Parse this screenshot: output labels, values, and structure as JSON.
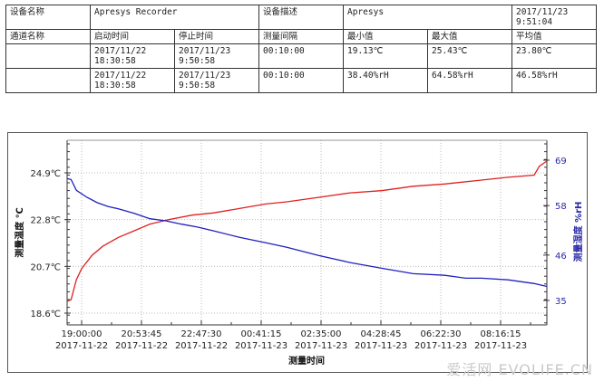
{
  "table": {
    "row1": {
      "label": "设备名称",
      "device_name": "Apresys Recorder",
      "desc_label": "设备描述",
      "desc": "Apresys",
      "timestamp_date": "2017/11/23",
      "timestamp_time": "9:51:04"
    },
    "header": {
      "channel": "通道名称",
      "start": "启动时间",
      "stop": "停止时间",
      "interval": "测量间隔",
      "min": "最小值",
      "max": "最大值",
      "avg": "平均值"
    },
    "rows": [
      {
        "channel": "",
        "start_date": "2017/11/22",
        "start_time": "18:30:58",
        "stop_date": "2017/11/23",
        "stop_time": "9:50:58",
        "interval": "00:10:00",
        "min": "19.13℃",
        "max": "25.43℃",
        "avg": "23.80℃"
      },
      {
        "channel": "",
        "start_date": "2017/11/22",
        "start_time": "18:30:58",
        "stop_date": "2017/11/23",
        "stop_time": "9:50:58",
        "interval": "00:10:00",
        "min": "38.40%rH",
        "max": "64.58%rH",
        "avg": "46.58%rH"
      }
    ]
  },
  "chart_data": {
    "type": "line",
    "title": "",
    "xlabel": "测量时间",
    "ylabel": "测量温度 ℃",
    "ylabel_right": "测量湿度 %rH",
    "x_ticks": [
      {
        "time": "19:00:00",
        "date": "2017-11-22"
      },
      {
        "time": "20:53:45",
        "date": "2017-11-22"
      },
      {
        "time": "22:47:30",
        "date": "2017-11-22"
      },
      {
        "time": "00:41:15",
        "date": "2017-11-23"
      },
      {
        "time": "02:35:00",
        "date": "2017-11-23"
      },
      {
        "time": "04:28:45",
        "date": "2017-11-23"
      },
      {
        "time": "06:22:30",
        "date": "2017-11-23"
      },
      {
        "time": "08:16:15",
        "date": "2017-11-23"
      }
    ],
    "y_left_ticks": [
      "24.9℃",
      "22.8℃",
      "20.7℃",
      "18.6℃"
    ],
    "y_right_ticks": [
      "69",
      "58",
      "46",
      "35"
    ],
    "ylim_left": [
      18.1,
      26.3
    ],
    "ylim_right": [
      32,
      73
    ],
    "grid": true,
    "series": [
      {
        "name": "温度",
        "axis": "left",
        "color": "#e02020",
        "unit": "℃",
        "x": [
          "18:30",
          "18:40",
          "18:50",
          "19:00",
          "19:20",
          "19:40",
          "20:10",
          "20:40",
          "21:10",
          "21:45",
          "22:30",
          "23:10",
          "24:00",
          "00:50",
          "01:30",
          "02:30",
          "03:30",
          "04:30",
          "05:30",
          "06:30",
          "07:30",
          "08:30",
          "09:20",
          "09:30",
          "09:50"
        ],
        "values": [
          19.13,
          19.2,
          20.1,
          20.6,
          21.2,
          21.6,
          22.0,
          22.3,
          22.6,
          22.8,
          23.0,
          23.1,
          23.3,
          23.5,
          23.6,
          23.8,
          24.0,
          24.1,
          24.3,
          24.4,
          24.55,
          24.7,
          24.8,
          25.2,
          25.43
        ]
      },
      {
        "name": "湿度",
        "axis": "right",
        "color": "#2020c0",
        "unit": "%rH",
        "x": [
          "18:30",
          "18:40",
          "18:50",
          "19:10",
          "19:30",
          "19:50",
          "20:10",
          "20:40",
          "21:10",
          "21:40",
          "22:10",
          "22:40",
          "23:10",
          "00:00",
          "00:50",
          "01:30",
          "02:30",
          "03:30",
          "04:30",
          "05:30",
          "06:30",
          "07:10",
          "07:40",
          "08:30",
          "09:20",
          "09:50"
        ],
        "values": [
          64.58,
          64.3,
          61.7,
          60.0,
          58.7,
          57.8,
          57.2,
          56.1,
          54.8,
          54.3,
          53.5,
          52.8,
          51.9,
          50.3,
          49.0,
          47.9,
          45.9,
          44.2,
          42.8,
          41.5,
          41.1,
          40.4,
          40.4,
          40.0,
          39.1,
          38.4
        ]
      }
    ]
  },
  "watermark": "爱活网 EVOLIFE.CN"
}
